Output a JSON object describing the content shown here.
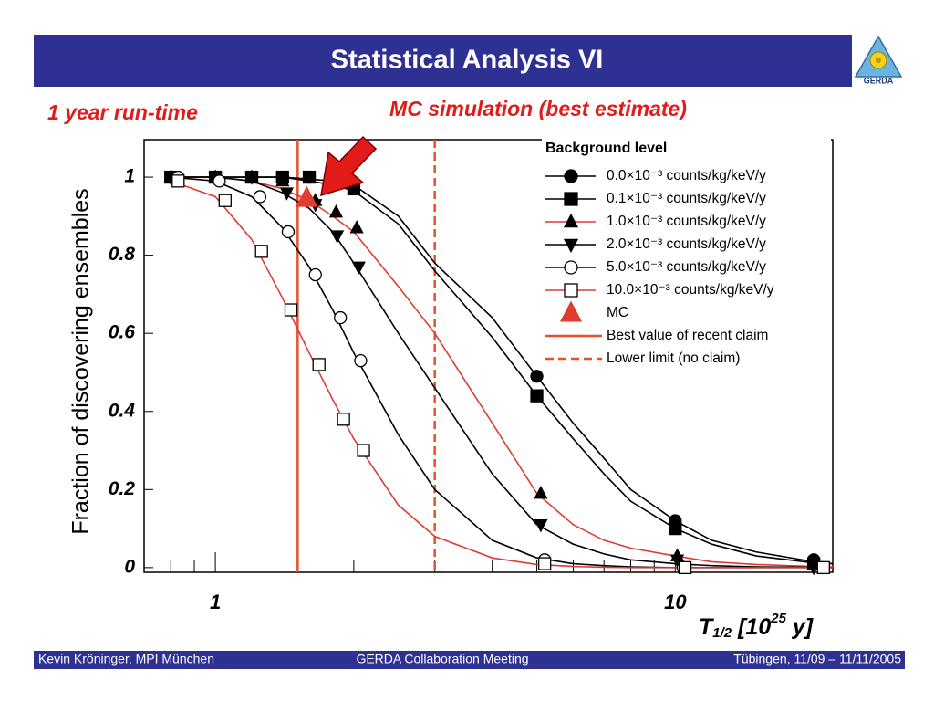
{
  "slide": {
    "title": "Statistical Analysis VI",
    "logo_text": "GERDA",
    "footer": [
      "Kevin Kröninger, MPI München",
      "GERDA Collaboration Meeting",
      "Tübingen, 11/09 – 11/11/2005"
    ]
  },
  "chart_data": {
    "type": "line",
    "annotations": [
      "1 year run-time",
      "MC simulation (best estimate)"
    ],
    "y_label": "Fraction of discovering ensembles",
    "x_label": {
      "main": "T",
      "sub": "1/2",
      "text": " [10",
      "sup": "25",
      "end": " y]"
    },
    "log_x": true,
    "xlim": [
      0.7,
      22
    ],
    "xticks": [
      1,
      10
    ],
    "xminorticks": [
      0.8,
      0.9,
      2,
      3,
      4,
      5,
      6,
      7,
      8,
      9,
      20
    ],
    "ylim": [
      -0.012,
      1.096
    ],
    "yticks": [
      0,
      0.2,
      0.4,
      0.6,
      0.8,
      1
    ],
    "legend_title": "Background level",
    "legend": "upper right",
    "fit_x": [
      0.8,
      1,
      1.2,
      1.4,
      1.6,
      1.8,
      2,
      2.5,
      3,
      4,
      5,
      6,
      7,
      8,
      10,
      12,
      15,
      20,
      22
    ],
    "series": [
      {
        "name": "0.0×10⁻³ counts/kg/keV/y",
        "color": "#000000",
        "marker": "circle",
        "filled": true,
        "x": [
          0.8,
          1,
          1.2,
          1.4,
          1.6,
          2,
          5,
          10,
          20
        ],
        "values": [
          1,
          1,
          1,
          1,
          1,
          0.98,
          0.49,
          0.12,
          0.02
        ],
        "fit_values": [
          1,
          1,
          1,
          1,
          0.995,
          0.99,
          0.98,
          0.9,
          0.78,
          0.64,
          0.49,
          0.37,
          0.28,
          0.2,
          0.12,
          0.07,
          0.04,
          0.015,
          0.01
        ]
      },
      {
        "name": "0.1×10⁻³ counts/kg/keV/y",
        "color": "#000000",
        "marker": "square",
        "filled": true,
        "x": [
          0.8,
          1,
          1.2,
          1.4,
          1.6,
          2,
          5,
          10,
          20
        ],
        "values": [
          1,
          1,
          1,
          1,
          1,
          0.97,
          0.44,
          0.1,
          0.01
        ],
        "fit_values": [
          1,
          1,
          1,
          1,
          0.99,
          0.98,
          0.965,
          0.88,
          0.76,
          0.59,
          0.44,
          0.33,
          0.24,
          0.17,
          0.1,
          0.06,
          0.03,
          0.012,
          0.01
        ]
      },
      {
        "name": "1.0×10⁻³ counts/kg/keV/y",
        "color": "#e03c31",
        "marker": "triangle-up",
        "filled": true,
        "x": [
          0.8,
          1,
          1.2,
          1.4,
          1.65,
          1.83,
          2.03,
          5.1,
          10.1,
          20
        ],
        "values": [
          1,
          1,
          1,
          0.99,
          0.94,
          0.91,
          0.87,
          0.19,
          0.03,
          0.01
        ],
        "fit_values": [
          1,
          1,
          0.99,
          0.97,
          0.94,
          0.9,
          0.86,
          0.72,
          0.6,
          0.37,
          0.19,
          0.11,
          0.07,
          0.05,
          0.03,
          0.015,
          0.008,
          0.003,
          0.002
        ]
      },
      {
        "name": "2.0×10⁻³ counts/kg/keV/y",
        "color": "#000000",
        "marker": "triangle-down",
        "filled": true,
        "x": [
          0.8,
          1,
          1.2,
          1.43,
          1.65,
          1.84,
          2.05,
          5.1,
          10.1,
          20
        ],
        "values": [
          1,
          1,
          1,
          0.96,
          0.93,
          0.85,
          0.77,
          0.11,
          0.02,
          0
        ],
        "fit_values": [
          1,
          1,
          0.99,
          0.96,
          0.92,
          0.86,
          0.78,
          0.6,
          0.46,
          0.24,
          0.11,
          0.06,
          0.035,
          0.02,
          0.01,
          0.005,
          0.002,
          0.001,
          0
        ]
      },
      {
        "name": "5.0×10⁻³ counts/kg/keV/y",
        "color": "#000000",
        "marker": "circle",
        "filled": false,
        "x": [
          0.83,
          1.02,
          1.25,
          1.44,
          1.65,
          1.87,
          2.07,
          5.2,
          10.4,
          21
        ],
        "values": [
          1,
          0.99,
          0.95,
          0.86,
          0.75,
          0.64,
          0.53,
          0.02,
          0,
          0
        ],
        "fit_values": [
          1,
          0.99,
          0.95,
          0.87,
          0.77,
          0.66,
          0.55,
          0.34,
          0.2,
          0.07,
          0.025,
          0.01,
          0.005,
          0.002,
          0,
          0,
          0,
          0,
          0
        ]
      },
      {
        "name": "10.0×10⁻³ counts/kg/keV/y",
        "color": "#e03c31",
        "marker": "square",
        "filled": false,
        "x": [
          0.83,
          1.05,
          1.26,
          1.46,
          1.68,
          1.9,
          2.1,
          5.2,
          10.5,
          21
        ],
        "values": [
          0.99,
          0.94,
          0.81,
          0.66,
          0.52,
          0.38,
          0.3,
          0.01,
          0,
          0
        ],
        "fit_values": [
          0.99,
          0.95,
          0.84,
          0.69,
          0.55,
          0.43,
          0.33,
          0.16,
          0.08,
          0.025,
          0.008,
          0.003,
          0.001,
          0,
          0,
          0,
          0,
          0,
          0
        ]
      }
    ],
    "mc": {
      "name": "MC",
      "x": 1.58,
      "value": 0.946,
      "color": "#e03c31"
    },
    "vlines": [
      {
        "name": "Best value of recent claim",
        "x": 1.51,
        "color": "#e8502c",
        "style": "solid"
      },
      {
        "name": "Lower limit (no claim)",
        "x": 3.0,
        "color": "#e8502c",
        "style": "dashed"
      }
    ]
  }
}
